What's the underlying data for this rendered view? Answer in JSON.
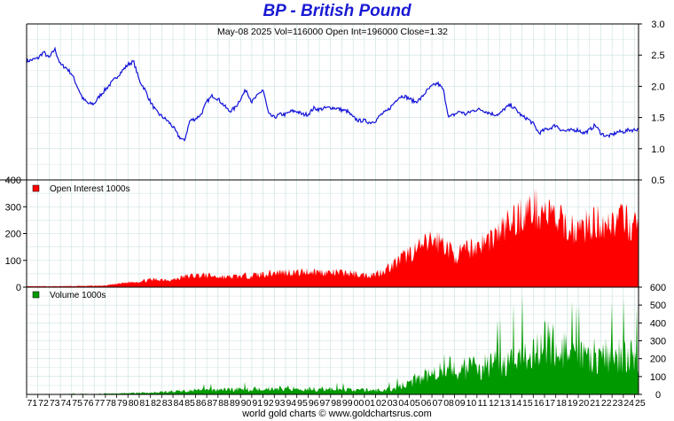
{
  "title": "BP  -  British Pound",
  "footer": "world gold charts © www.goldchartsrus.com",
  "info_line": "May-08  2025   Vol=116000   Open Int=196000   Close=1.32",
  "colors": {
    "title": "#1a1ad4",
    "price": "#1010d8",
    "open_interest": "#ff0000",
    "volume": "#009900",
    "grid": "#c9dfe0"
  },
  "chart_data": [
    {
      "type": "line",
      "ylim": [
        0.5,
        3.0
      ],
      "yticks": [
        0.5,
        1.0,
        1.5,
        2.0,
        2.5,
        3.0
      ],
      "x": [
        1971,
        1972,
        1972.5,
        1973,
        1973.5,
        1974,
        1974.5,
        1975,
        1975.5,
        1976,
        1976.5,
        1977,
        1977.5,
        1978,
        1978.5,
        1979,
        1979.5,
        1980,
        1980.5,
        1981,
        1981.5,
        1982,
        1982.5,
        1983,
        1983.5,
        1984,
        1984.5,
        1985,
        1985.5,
        1986,
        1986.5,
        1987,
        1987.5,
        1988,
        1988.5,
        1989,
        1989.5,
        1990,
        1990.5,
        1991,
        1991.5,
        1992,
        1992.5,
        1993,
        1993.5,
        1994,
        1994.5,
        1995,
        1995.5,
        1996,
        1996.5,
        1997,
        1997.5,
        1998,
        1998.5,
        1999,
        1999.5,
        2000,
        2000.5,
        2001,
        2001.5,
        2002,
        2002.5,
        2003,
        2003.5,
        2004,
        2004.5,
        2005,
        2005.5,
        2006,
        2006.5,
        2007,
        2007.5,
        2008,
        2008.5,
        2009,
        2009.5,
        2010,
        2010.5,
        2011,
        2011.5,
        2012,
        2012.5,
        2013,
        2013.5,
        2014,
        2014.5,
        2015,
        2015.5,
        2016,
        2016.5,
        2017,
        2017.5,
        2018,
        2018.5,
        2019,
        2019.5,
        2020,
        2020.5,
        2021,
        2021.5,
        2022,
        2022.5,
        2023,
        2023.5,
        2024,
        2024.5,
        2025,
        2025.35
      ],
      "values": [
        2.4,
        2.45,
        2.55,
        2.45,
        2.6,
        2.35,
        2.3,
        2.2,
        2.0,
        1.8,
        1.72,
        1.72,
        1.85,
        1.95,
        2.05,
        2.15,
        2.25,
        2.35,
        2.4,
        2.1,
        1.95,
        1.75,
        1.6,
        1.52,
        1.45,
        1.35,
        1.2,
        1.12,
        1.45,
        1.48,
        1.55,
        1.75,
        1.85,
        1.8,
        1.7,
        1.6,
        1.65,
        1.8,
        1.95,
        1.75,
        1.85,
        1.95,
        1.55,
        1.5,
        1.55,
        1.55,
        1.6,
        1.6,
        1.55,
        1.55,
        1.65,
        1.63,
        1.65,
        1.66,
        1.65,
        1.62,
        1.6,
        1.5,
        1.45,
        1.45,
        1.42,
        1.45,
        1.55,
        1.6,
        1.7,
        1.82,
        1.85,
        1.8,
        1.75,
        1.8,
        1.92,
        2.0,
        2.05,
        1.95,
        1.5,
        1.55,
        1.6,
        1.55,
        1.6,
        1.63,
        1.62,
        1.58,
        1.55,
        1.55,
        1.65,
        1.7,
        1.62,
        1.52,
        1.48,
        1.4,
        1.25,
        1.3,
        1.33,
        1.38,
        1.3,
        1.28,
        1.3,
        1.3,
        1.25,
        1.3,
        1.38,
        1.25,
        1.2,
        1.22,
        1.27,
        1.27,
        1.3,
        1.3,
        1.32
      ]
    },
    {
      "type": "bar",
      "legend": "Open Interest  1000s",
      "ylim": [
        0,
        400
      ],
      "yticks": [
        0,
        50,
        100,
        150,
        200,
        250,
        300,
        350,
        400
      ],
      "ytick_labels": [
        "0",
        "100",
        "200",
        "300",
        "400"
      ],
      "x": [
        1971,
        1975,
        1977,
        1978,
        1979,
        1980,
        1981,
        1982,
        1983,
        1984,
        1985,
        1986,
        1987,
        1988,
        1989,
        1990,
        1991,
        1992,
        1993,
        1994,
        1995,
        1996,
        1997,
        1998,
        1999,
        2000,
        2001,
        2002,
        2003,
        2004,
        2005,
        2006,
        2007,
        2008,
        2009,
        2010,
        2011,
        2012,
        2013,
        2014,
        2015,
        2016,
        2017,
        2018,
        2019,
        2020,
        2021,
        2022,
        2023,
        2024,
        2025
      ],
      "values": [
        3,
        4,
        5,
        6,
        12,
        18,
        22,
        28,
        30,
        28,
        40,
        45,
        45,
        40,
        38,
        42,
        45,
        50,
        55,
        58,
        55,
        60,
        58,
        55,
        55,
        52,
        45,
        50,
        70,
        100,
        130,
        150,
        180,
        170,
        120,
        140,
        160,
        180,
        210,
        250,
        280,
        300,
        290,
        260,
        230,
        220,
        240,
        250,
        250,
        255,
        230
      ]
    },
    {
      "type": "bar",
      "legend": "Volume  1000s",
      "ylim": [
        0,
        600
      ],
      "yticks": [
        0,
        100,
        200,
        300,
        400,
        500,
        600
      ],
      "x": [
        1971,
        1978,
        1980,
        1982,
        1984,
        1986,
        1988,
        1990,
        1992,
        1994,
        1996,
        1998,
        2000,
        2002,
        2003,
        2004,
        2005,
        2006,
        2007,
        2008,
        2009,
        2010,
        2011,
        2012,
        2013,
        2014,
        2015,
        2016,
        2017,
        2018,
        2019,
        2020,
        2021,
        2022,
        2023,
        2024,
        2025
      ],
      "values": [
        1,
        4,
        8,
        12,
        18,
        25,
        30,
        32,
        35,
        38,
        35,
        32,
        30,
        25,
        30,
        45,
        70,
        110,
        150,
        190,
        150,
        160,
        170,
        180,
        200,
        230,
        260,
        300,
        320,
        300,
        260,
        230,
        250,
        240,
        240,
        250,
        230
      ]
    }
  ],
  "x_axis": {
    "labels": [
      "71",
      "72",
      "73",
      "74",
      "75",
      "76",
      "77",
      "78",
      "79",
      "80",
      "81",
      "82",
      "83",
      "84",
      "85",
      "86",
      "87",
      "88",
      "89",
      "90",
      "91",
      "92",
      "93",
      "94",
      "95",
      "96",
      "97",
      "98",
      "99",
      "00",
      "01",
      "02",
      "03",
      "04",
      "05",
      "06",
      "07",
      "08",
      "09",
      "10",
      "11",
      "12",
      "13",
      "14",
      "15",
      "16",
      "17",
      "18",
      "19",
      "20",
      "21",
      "22",
      "23",
      "24",
      "25"
    ],
    "start_year": 1971,
    "end_year": 2025.35
  }
}
